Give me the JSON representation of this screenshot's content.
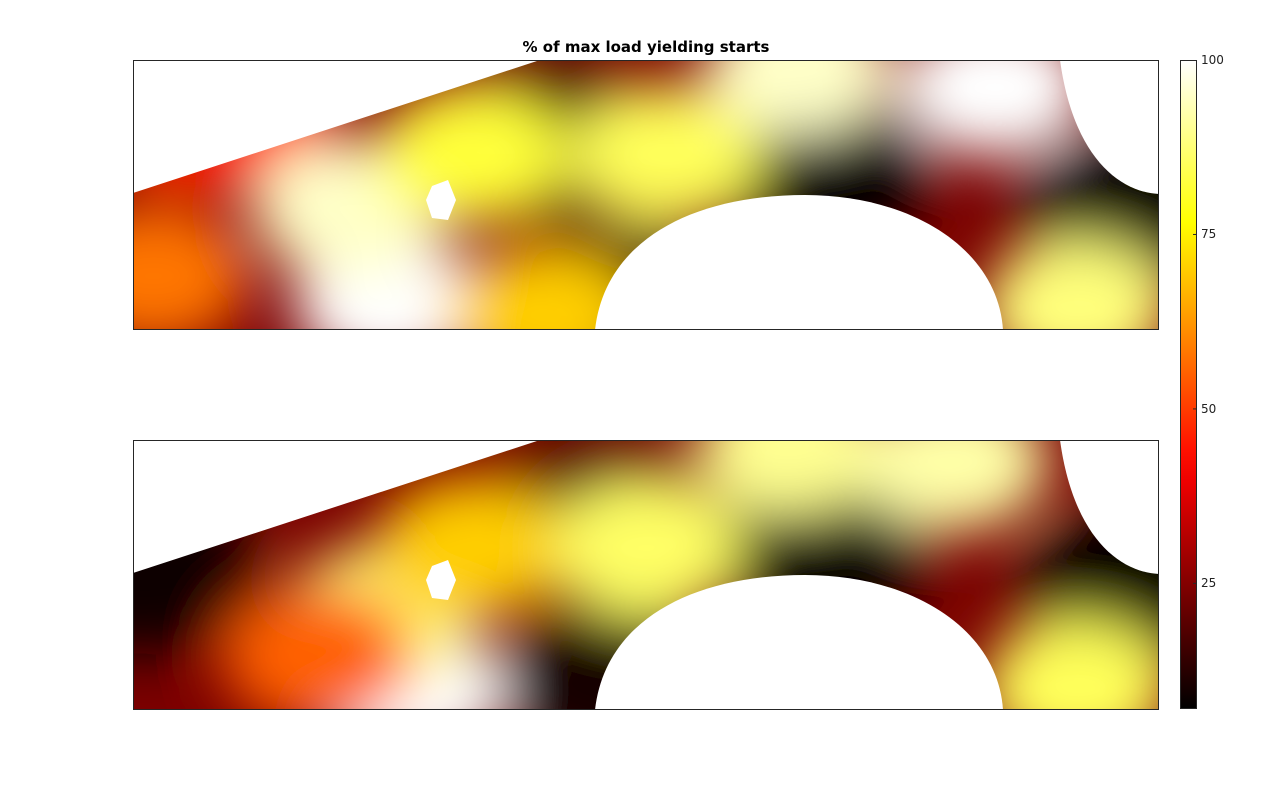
{
  "chart_data": {
    "type": "heatmap",
    "title": "% of max load yielding starts",
    "colormap": "hot",
    "colorbar": {
      "range": [
        7,
        100
      ],
      "ticks": [
        25,
        50,
        75,
        100
      ],
      "placement": "right"
    },
    "grid": false,
    "axes_ticks_shown": false,
    "panels": [
      {
        "name": "",
        "hotspots": [
          {
            "u": 0.25,
            "v": 0.9,
            "value": 100
          },
          {
            "u": 0.21,
            "v": 0.55,
            "value": 95
          },
          {
            "u": 0.33,
            "v": 0.35,
            "value": 82
          },
          {
            "u": 0.52,
            "v": 0.35,
            "value": 85
          },
          {
            "u": 0.65,
            "v": 0.02,
            "value": 95
          },
          {
            "u": 0.84,
            "v": 0.1,
            "value": 100
          },
          {
            "u": 0.92,
            "v": 0.92,
            "value": 88
          },
          {
            "u": 0.4,
            "v": 0.95,
            "value": 70
          },
          {
            "u": 0.02,
            "v": 0.8,
            "value": 58
          }
        ],
        "cold_spots": [
          {
            "u": 0.66,
            "v": 0.4,
            "value": 7
          },
          {
            "u": 0.4,
            "v": 0.3,
            "value": 14
          },
          {
            "u": 0.98,
            "v": 0.55,
            "value": 7
          },
          {
            "u": 0.47,
            "v": 0.9,
            "value": 12
          },
          {
            "u": 0.08,
            "v": 0.2,
            "value": 45
          }
        ]
      },
      {
        "name": "",
        "hotspots": [
          {
            "u": 0.27,
            "v": 0.93,
            "value": 100
          },
          {
            "u": 0.24,
            "v": 0.65,
            "value": 88
          },
          {
            "u": 0.33,
            "v": 0.4,
            "value": 70
          },
          {
            "u": 0.5,
            "v": 0.4,
            "value": 86
          },
          {
            "u": 0.64,
            "v": 0.02,
            "value": 90
          },
          {
            "u": 0.8,
            "v": 0.08,
            "value": 92
          },
          {
            "u": 0.92,
            "v": 0.92,
            "value": 85
          },
          {
            "u": 0.18,
            "v": 0.8,
            "value": 55
          }
        ],
        "cold_spots": [
          {
            "u": 0.66,
            "v": 0.4,
            "value": 7
          },
          {
            "u": 0.45,
            "v": 0.3,
            "value": 16
          },
          {
            "u": 0.98,
            "v": 0.55,
            "value": 7
          },
          {
            "u": 0.47,
            "v": 0.9,
            "value": 10
          },
          {
            "u": 0.01,
            "v": 0.5,
            "value": 8
          }
        ]
      }
    ]
  }
}
